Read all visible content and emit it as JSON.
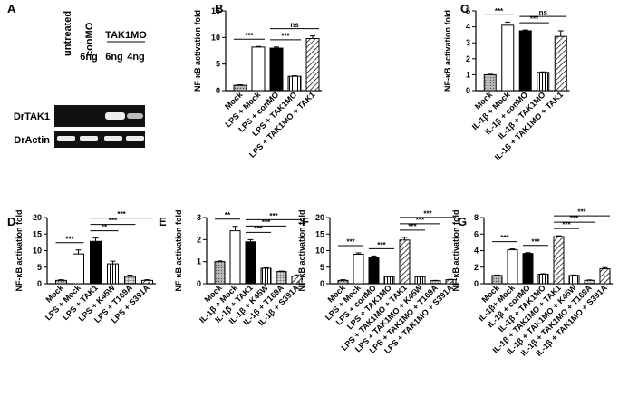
{
  "gel": {
    "panel": "A",
    "lane_labels": [
      "untreated",
      "conMO"
    ],
    "group_label": "TAK1MO",
    "dose_labels": [
      "6ng",
      "6ng",
      "4ng"
    ],
    "rows": [
      "DrTAK1",
      "DrActin"
    ]
  },
  "chart_data": [
    {
      "type": "bar",
      "panel": "B",
      "ylabel": "NF-κB activation fold",
      "categories": [
        "Mock",
        "LPS + Mock",
        "LPS + conMO",
        "LPS + TAK1MO",
        "LPS + TAK1MO + TAK1"
      ],
      "values": [
        1.0,
        8.2,
        8.0,
        2.7,
        9.8
      ],
      "errors": [
        0.1,
        0.1,
        0.2,
        0.1,
        0.5
      ],
      "fills": [
        "dot",
        "white",
        "black",
        "vline",
        "diag"
      ],
      "ylim": [
        0,
        15
      ],
      "yticks": [
        0,
        5,
        10,
        15
      ],
      "comparisons": [
        {
          "from": 0,
          "to": 1,
          "label": "***"
        },
        {
          "from": 2,
          "to": 3,
          "label": "***"
        },
        {
          "from": 2,
          "to": 4,
          "label": "ns"
        }
      ]
    },
    {
      "type": "bar",
      "panel": "C",
      "ylabel": "NF-κB activation fold",
      "categories": [
        "Mock",
        "IL-1β + Mock",
        "IL-1β + conMO",
        "IL-1β + TAK1MO",
        "IL-1β + TAK1MO + TAK1"
      ],
      "values": [
        1.0,
        4.1,
        3.75,
        1.15,
        3.4
      ],
      "errors": [
        0.03,
        0.2,
        0.05,
        0.03,
        0.35
      ],
      "fills": [
        "dot",
        "white",
        "black",
        "vline",
        "diag"
      ],
      "ylim": [
        0,
        5
      ],
      "yticks": [
        0,
        1,
        2,
        3,
        4,
        5
      ],
      "comparisons": [
        {
          "from": 0,
          "to": 1,
          "label": "***"
        },
        {
          "from": 2,
          "to": 3,
          "label": "***"
        },
        {
          "from": 2,
          "to": 4,
          "label": "ns"
        }
      ]
    },
    {
      "type": "bar",
      "panel": "D",
      "ylabel": "NF-κB activation fold",
      "categories": [
        "Mock",
        "LPS + Mock",
        "LPS + TAK1",
        "LPS + K45W",
        "LPS + T169A",
        "LPS + S391A"
      ],
      "values": [
        1.0,
        9.0,
        12.8,
        6.0,
        2.2,
        1.0
      ],
      "errors": [
        0.2,
        1.2,
        1.0,
        0.8,
        0.4,
        0.2
      ],
      "fills": [
        "dot",
        "white",
        "black",
        "vline",
        "grid",
        "diag"
      ],
      "ylim": [
        0,
        20
      ],
      "yticks": [
        0,
        5,
        10,
        15,
        20
      ],
      "comparisons": [
        {
          "from": 0,
          "to": 1,
          "label": "***"
        },
        {
          "from": 2,
          "to": 3,
          "label": "**"
        },
        {
          "from": 2,
          "to": 4,
          "label": "***"
        },
        {
          "from": 2,
          "to": 5,
          "label": "***"
        }
      ]
    },
    {
      "type": "bar",
      "panel": "E",
      "ylabel": "NF-κB activation fold",
      "categories": [
        "Mock",
        "IL-1β + Mock",
        "IL-1β + TAK1",
        "IL-1β + K45W",
        "IL-1β + T169A",
        "IL-1β + S391A"
      ],
      "values": [
        1.0,
        2.4,
        1.9,
        0.7,
        0.55,
        0.35
      ],
      "errors": [
        0.03,
        0.2,
        0.1,
        0.02,
        0.02,
        0.05
      ],
      "fills": [
        "dot",
        "white",
        "black",
        "vline",
        "grid",
        "diag"
      ],
      "ylim": [
        0,
        3
      ],
      "yticks": [
        0,
        1,
        2,
        3
      ],
      "comparisons": [
        {
          "from": 0,
          "to": 1,
          "label": "**"
        },
        {
          "from": 2,
          "to": 3,
          "label": "***"
        },
        {
          "from": 2,
          "to": 4,
          "label": "***"
        },
        {
          "from": 2,
          "to": 5,
          "label": "***"
        }
      ]
    },
    {
      "type": "bar",
      "panel": "F",
      "ylabel": "NF-κB activation fold",
      "categories": [
        "Mock",
        "LPS + Mock",
        "LPS + conMO",
        "LPS + TAK1MO",
        "LPS + TAK1MO + TAK1",
        "LPS + TAK1MO + K45W",
        "LPS + TAK1MO + T169A",
        "LPS + TAK1MO + S391A"
      ],
      "values": [
        1.0,
        8.9,
        7.8,
        2.1,
        13.2,
        2.1,
        0.9,
        1.2
      ],
      "errors": [
        0.2,
        0.4,
        0.6,
        0.1,
        0.8,
        0.1,
        0.1,
        0.1
      ],
      "fills": [
        "dot",
        "white",
        "black",
        "vline",
        "diag",
        "vline",
        "grid",
        "diag"
      ],
      "ylim": [
        0,
        20
      ],
      "yticks": [
        0,
        5,
        10,
        15,
        20
      ],
      "comparisons": [
        {
          "from": 0,
          "to": 1,
          "label": "***"
        },
        {
          "from": 2,
          "to": 3,
          "label": "***"
        },
        {
          "from": 4,
          "to": 5,
          "label": "***"
        },
        {
          "from": 4,
          "to": 6,
          "label": "***"
        },
        {
          "from": 4,
          "to": 7,
          "label": "***"
        }
      ]
    },
    {
      "type": "bar",
      "panel": "G",
      "ylabel": "NF-κB activation fold",
      "categories": [
        "Mock",
        "IL-1β+ Mock",
        "IL-1β + conMO",
        "IL-1β + TAK1MO",
        "IL-1β + TAK1MO + TAK1",
        "IL-1β + TAK1MO + K45W",
        "IL-1β + TAK1MO + T169A",
        "IL-1β + TAK1MO + S391A"
      ],
      "values": [
        1.0,
        4.1,
        3.65,
        1.15,
        5.7,
        1.0,
        0.4,
        1.8
      ],
      "errors": [
        0.05,
        0.1,
        0.1,
        0.05,
        0.1,
        0.05,
        0.05,
        0.15
      ],
      "fills": [
        "dot",
        "white",
        "black",
        "vline",
        "diag",
        "vline",
        "grid",
        "diag"
      ],
      "ylim": [
        0,
        8
      ],
      "yticks": [
        0,
        2,
        4,
        6,
        8
      ],
      "comparisons": [
        {
          "from": 0,
          "to": 1,
          "label": "***"
        },
        {
          "from": 2,
          "to": 3,
          "label": "***"
        },
        {
          "from": 4,
          "to": 5,
          "label": "***"
        },
        {
          "from": 4,
          "to": 6,
          "label": "***"
        },
        {
          "from": 4,
          "to": 7,
          "label": "***"
        }
      ]
    }
  ]
}
